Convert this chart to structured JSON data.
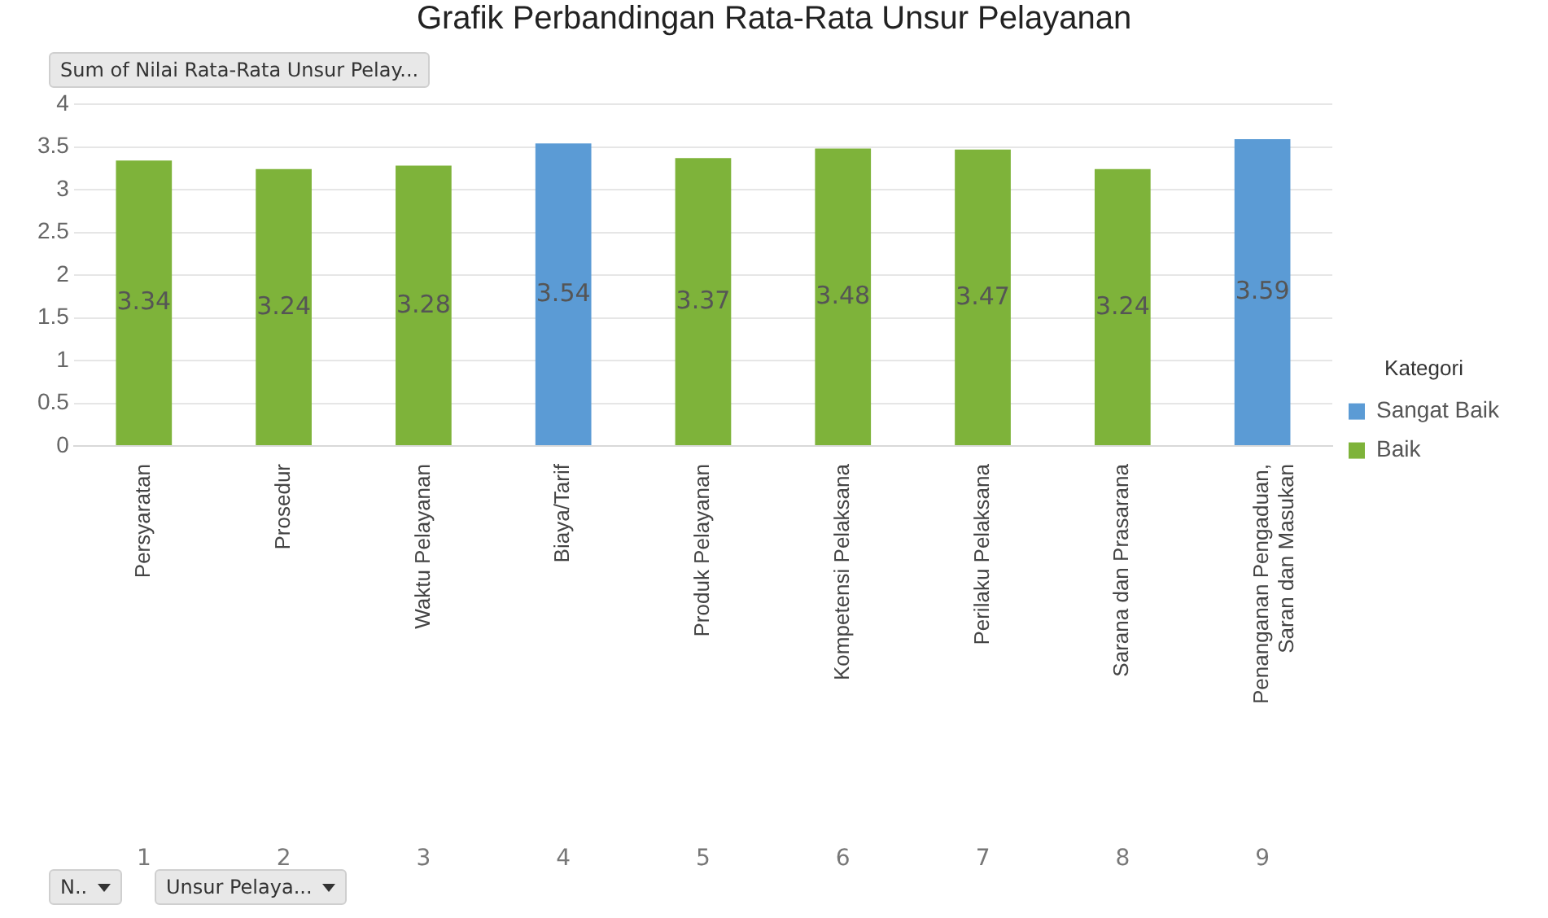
{
  "chart_data": {
    "type": "bar",
    "title": "Grafik Perbandingan Rata-Rata Unsur Pelayanan",
    "categories": [
      "Persyaratan",
      "Prosedur",
      "Waktu Pelayanan",
      "Biaya/Tarif",
      "Produk Pelayanan",
      "Kompetensi Pelaksana",
      "Perilaku Pelaksana",
      "Sarana dan Prasarana",
      "Penanganan Pengaduan, Saran dan Masukan"
    ],
    "series": [
      {
        "name": "Sangat Baik",
        "color": "#5b9bd5",
        "values": [
          null,
          null,
          null,
          3.54,
          null,
          null,
          null,
          null,
          3.59
        ]
      },
      {
        "name": "Baik",
        "color": "#7eb33a",
        "values": [
          3.34,
          3.24,
          3.28,
          null,
          3.37,
          3.48,
          3.47,
          3.24,
          null
        ]
      }
    ],
    "ylim": [
      0,
      4
    ],
    "yticks": [
      0,
      {
        "value": 0.5,
        "label": "0.5"
      },
      1,
      {
        "value": 1.5,
        "label": "1.5"
      },
      2,
      {
        "value": 2.5,
        "label": "2.5"
      },
      3,
      {
        "value": 3.5,
        "label": "3.5"
      },
      4
    ],
    "grid": "y",
    "legend": "right",
    "legend_title": "Kategori",
    "data_labels": true,
    "annotations": [
      "1",
      "2",
      "3",
      "4",
      "5",
      "6",
      "7",
      "8",
      "9",
      "Sum of Nilai Rata-Rata Unsur Pelay...",
      "N..",
      "Unsur Pelaya..."
    ]
  }
}
